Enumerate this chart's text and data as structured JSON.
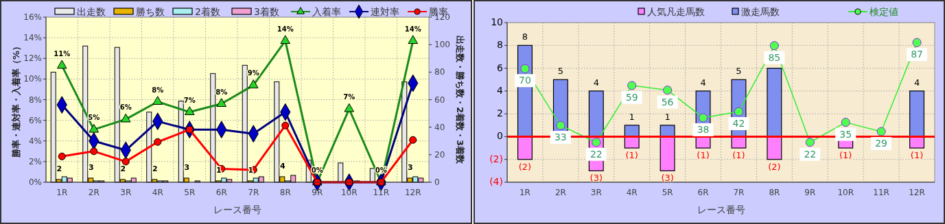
{
  "chart_data": [
    {
      "type": "bar",
      "xlabel": "レース番号",
      "ylabel": "勝率・連対率・入着率（%）",
      "y2label": "出走数・勝ち数・2着数・3着数",
      "categories": [
        "1R",
        "2R",
        "3R",
        "4R",
        "5R",
        "6R",
        "7R",
        "8R",
        "9R",
        "10R",
        "11R",
        "12R"
      ],
      "ylim": [
        0,
        16
      ],
      "yticks": [
        {
          "value": 0,
          "label": "0%"
        },
        {
          "value": 2,
          "label": "2%"
        },
        {
          "value": 4,
          "label": "4%"
        },
        {
          "value": 6,
          "label": "6%"
        },
        {
          "value": 8,
          "label": "8%"
        },
        {
          "value": 10,
          "label": "10%"
        },
        {
          "value": 12,
          "label": "12%"
        },
        {
          "value": 14,
          "label": "14%"
        },
        {
          "value": 16,
          "label": "16%"
        }
      ],
      "y2lim": [
        0,
        120
      ],
      "y2ticks": [
        0,
        20,
        40,
        60,
        80,
        100,
        120
      ],
      "grid": true,
      "legend": "top",
      "series": [
        {
          "name": "出走数",
          "type": "bar",
          "axis": "y2",
          "color": "#e8e8e8",
          "values": [
            80,
            99,
            98,
            51,
            59,
            79,
            85,
            73,
            16,
            14,
            10,
            73
          ]
        },
        {
          "name": "勝ち数",
          "type": "bar",
          "axis": "y2",
          "color": "#e8b400",
          "values": [
            2,
            3,
            2,
            2,
            3,
            1,
            1,
            4,
            0,
            0,
            0,
            3
          ],
          "value_labels": [
            "2",
            "3",
            "2",
            "2",
            "3",
            "1",
            "1",
            "4",
            null,
            null,
            null,
            "3"
          ]
        },
        {
          "name": "2着数",
          "type": "bar",
          "axis": "y2",
          "color": "#a8f0f0",
          "values": [
            4,
            1,
            1,
            1,
            0,
            3,
            3,
            1,
            0,
            0,
            0,
            4
          ]
        },
        {
          "name": "3着数",
          "type": "bar",
          "axis": "y2",
          "color": "#f0a0d0",
          "values": [
            3,
            1,
            3,
            1,
            1,
            2,
            4,
            5,
            0,
            1,
            0,
            3
          ]
        },
        {
          "name": "入着率",
          "type": "line",
          "marker": "triangle",
          "color": "#1a8a1a",
          "values": [
            11.3,
            5.1,
            6.1,
            7.8,
            6.8,
            7.6,
            9.4,
            13.7,
            0,
            7.1,
            0,
            13.7
          ],
          "value_labels": [
            "11%",
            "5%",
            "6%",
            "8%",
            "7%",
            "8%",
            "9%",
            "14%",
            "0%",
            "7%",
            "0%",
            "14%"
          ]
        },
        {
          "name": "連対率",
          "type": "line",
          "marker": "diamond",
          "color": "#000080",
          "values": [
            7.5,
            4.0,
            3.1,
            5.9,
            5.1,
            5.1,
            4.7,
            6.8,
            0,
            0,
            0,
            9.6
          ]
        },
        {
          "name": "勝率",
          "type": "line",
          "marker": "circle",
          "color": "#ff0000",
          "values": [
            2.5,
            3.0,
            2.0,
            3.9,
            5.1,
            1.3,
            1.2,
            5.5,
            0,
            0,
            0,
            4.1
          ]
        }
      ]
    },
    {
      "type": "bar",
      "xlabel": "レース番号",
      "categories": [
        "1R",
        "2R",
        "3R",
        "4R",
        "5R",
        "6R",
        "7R",
        "8R",
        "9R",
        "10R",
        "11R",
        "12R"
      ],
      "ylim": [
        -4,
        10
      ],
      "yticks": [
        {
          "value": -4,
          "label": "(4)"
        },
        {
          "value": -2,
          "label": "(2)"
        },
        0,
        2,
        4,
        6,
        8,
        10
      ],
      "y2lim": [
        -4,
        100
      ],
      "grid": true,
      "legend": "top",
      "stacked": true,
      "ref_lines": [
        {
          "axis": "y",
          "value": 0,
          "color": "#ff0000"
        }
      ],
      "series": [
        {
          "name": "人気凡走馬数",
          "type": "bar",
          "color": "#ff80ff",
          "values": [
            -2,
            0,
            -3,
            -1,
            -3,
            -1,
            -1,
            -2,
            0,
            -1,
            0,
            -1
          ],
          "value_labels": [
            "(2)",
            null,
            "(3)",
            "(1)",
            "(3)",
            "(1)",
            "(1)",
            "(2)",
            null,
            "(1)",
            null,
            "(1)"
          ]
        },
        {
          "name": "激走馬数",
          "type": "bar",
          "color": "#7f8ff0",
          "values": [
            8,
            5,
            4,
            1,
            1,
            4,
            5,
            6,
            0,
            0,
            0,
            4
          ],
          "value_labels": [
            "8",
            "5",
            "4",
            "1",
            "1",
            "4",
            "5",
            null,
            null,
            null,
            null,
            "4"
          ]
        },
        {
          "name": "検定値",
          "type": "line",
          "axis": "y2",
          "marker": "circle",
          "color": "#33ee33",
          "values": [
            70,
            33,
            22,
            59,
            56,
            38,
            42,
            85,
            22,
            35,
            29,
            87
          ],
          "value_labels": [
            "70",
            "33",
            "22",
            "59",
            "56",
            "38",
            "42",
            "85",
            "22",
            "35",
            "29",
            "87"
          ]
        }
      ]
    }
  ]
}
